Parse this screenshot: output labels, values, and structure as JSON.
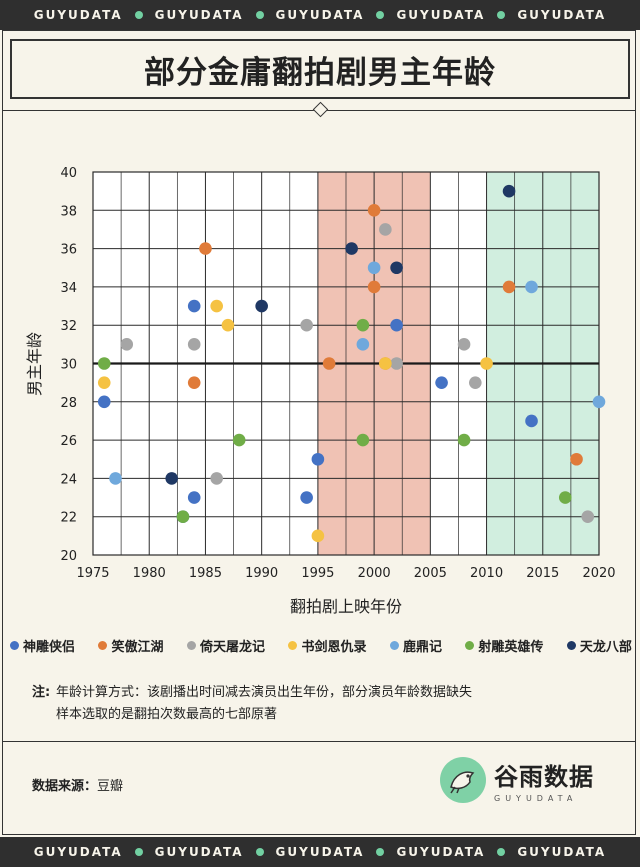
{
  "brand_strip": {
    "word": "GUYUDATA",
    "count": 5
  },
  "title": "部分金庸翻拍剧男主年龄",
  "chart_data": {
    "type": "scatter",
    "xlabel": "翻拍剧上映年份",
    "ylabel": "男主年龄",
    "xlim": [
      1975,
      2020
    ],
    "ylim": [
      20,
      40
    ],
    "xticks": [
      1975,
      1980,
      1985,
      1990,
      1995,
      2000,
      2005,
      2010,
      2015,
      2020
    ],
    "yticks": [
      20,
      22,
      24,
      26,
      28,
      30,
      32,
      34,
      36,
      38,
      40
    ],
    "grid": true,
    "reference_line_y": 30,
    "highlight_bands": [
      {
        "from": 1995,
        "to": 2005,
        "color": "#f0c2b4"
      },
      {
        "from": 2010,
        "to": 2020,
        "color": "#d1eedf"
      }
    ],
    "legend_position": "bottom",
    "series": [
      {
        "name": "神雕侠侣",
        "color": "#4472c4",
        "points": [
          [
            1976,
            28
          ],
          [
            1983,
            22
          ],
          [
            1984,
            33
          ],
          [
            1984,
            23
          ],
          [
            1995,
            25
          ],
          [
            1994,
            23
          ],
          [
            2002,
            32
          ],
          [
            2006,
            29
          ],
          [
            2014,
            27
          ]
        ]
      },
      {
        "name": "笑傲江湖",
        "color": "#e07b39",
        "points": [
          [
            1985,
            36
          ],
          [
            1984,
            29
          ],
          [
            1996,
            30
          ],
          [
            2000,
            38
          ],
          [
            2000,
            34
          ],
          [
            2001,
            30
          ],
          [
            2012,
            34
          ],
          [
            2018,
            25
          ]
        ]
      },
      {
        "name": "倚天屠龙记",
        "color": "#a5a5a5",
        "points": [
          [
            1978,
            31
          ],
          [
            1984,
            31
          ],
          [
            1986,
            24
          ],
          [
            1994,
            32
          ],
          [
            2001,
            37
          ],
          [
            2002,
            30
          ],
          [
            2008,
            31
          ],
          [
            2009,
            29
          ],
          [
            2019,
            22
          ]
        ]
      },
      {
        "name": "书剑恩仇录",
        "color": "#f5c242",
        "points": [
          [
            1976,
            29
          ],
          [
            1986,
            33
          ],
          [
            1987,
            32
          ],
          [
            1995,
            21
          ],
          [
            2001,
            30
          ],
          [
            2010,
            30
          ]
        ]
      },
      {
        "name": "鹿鼎记",
        "color": "#6fa8dc",
        "points": [
          [
            1977,
            24
          ],
          [
            1999,
            31
          ],
          [
            2000,
            35
          ],
          [
            2014,
            34
          ],
          [
            2020,
            28
          ]
        ]
      },
      {
        "name": "射雕英雄传",
        "color": "#70ad47",
        "points": [
          [
            1976,
            30
          ],
          [
            1983,
            22
          ],
          [
            1988,
            26
          ],
          [
            1999,
            32
          ],
          [
            1999,
            26
          ],
          [
            2008,
            26
          ],
          [
            2017,
            23
          ]
        ]
      },
      {
        "name": "天龙八部",
        "color": "#1f3864",
        "points": [
          [
            1982,
            24
          ],
          [
            1990,
            33
          ],
          [
            1998,
            36
          ],
          [
            2002,
            35
          ],
          [
            2012,
            39
          ]
        ]
      }
    ]
  },
  "notes": {
    "label": "注:",
    "line1": "年龄计算方式：该剧播出时间减去演员出生年份，部分演员年龄数据缺失",
    "line2": "样本选取的是翻拍次数最高的七部原著"
  },
  "source": {
    "label": "数据来源：",
    "value": "豆瓣"
  },
  "logo": {
    "name": "谷雨数据",
    "sub": "GUYUDATA",
    "color": "#7fd1a6"
  }
}
